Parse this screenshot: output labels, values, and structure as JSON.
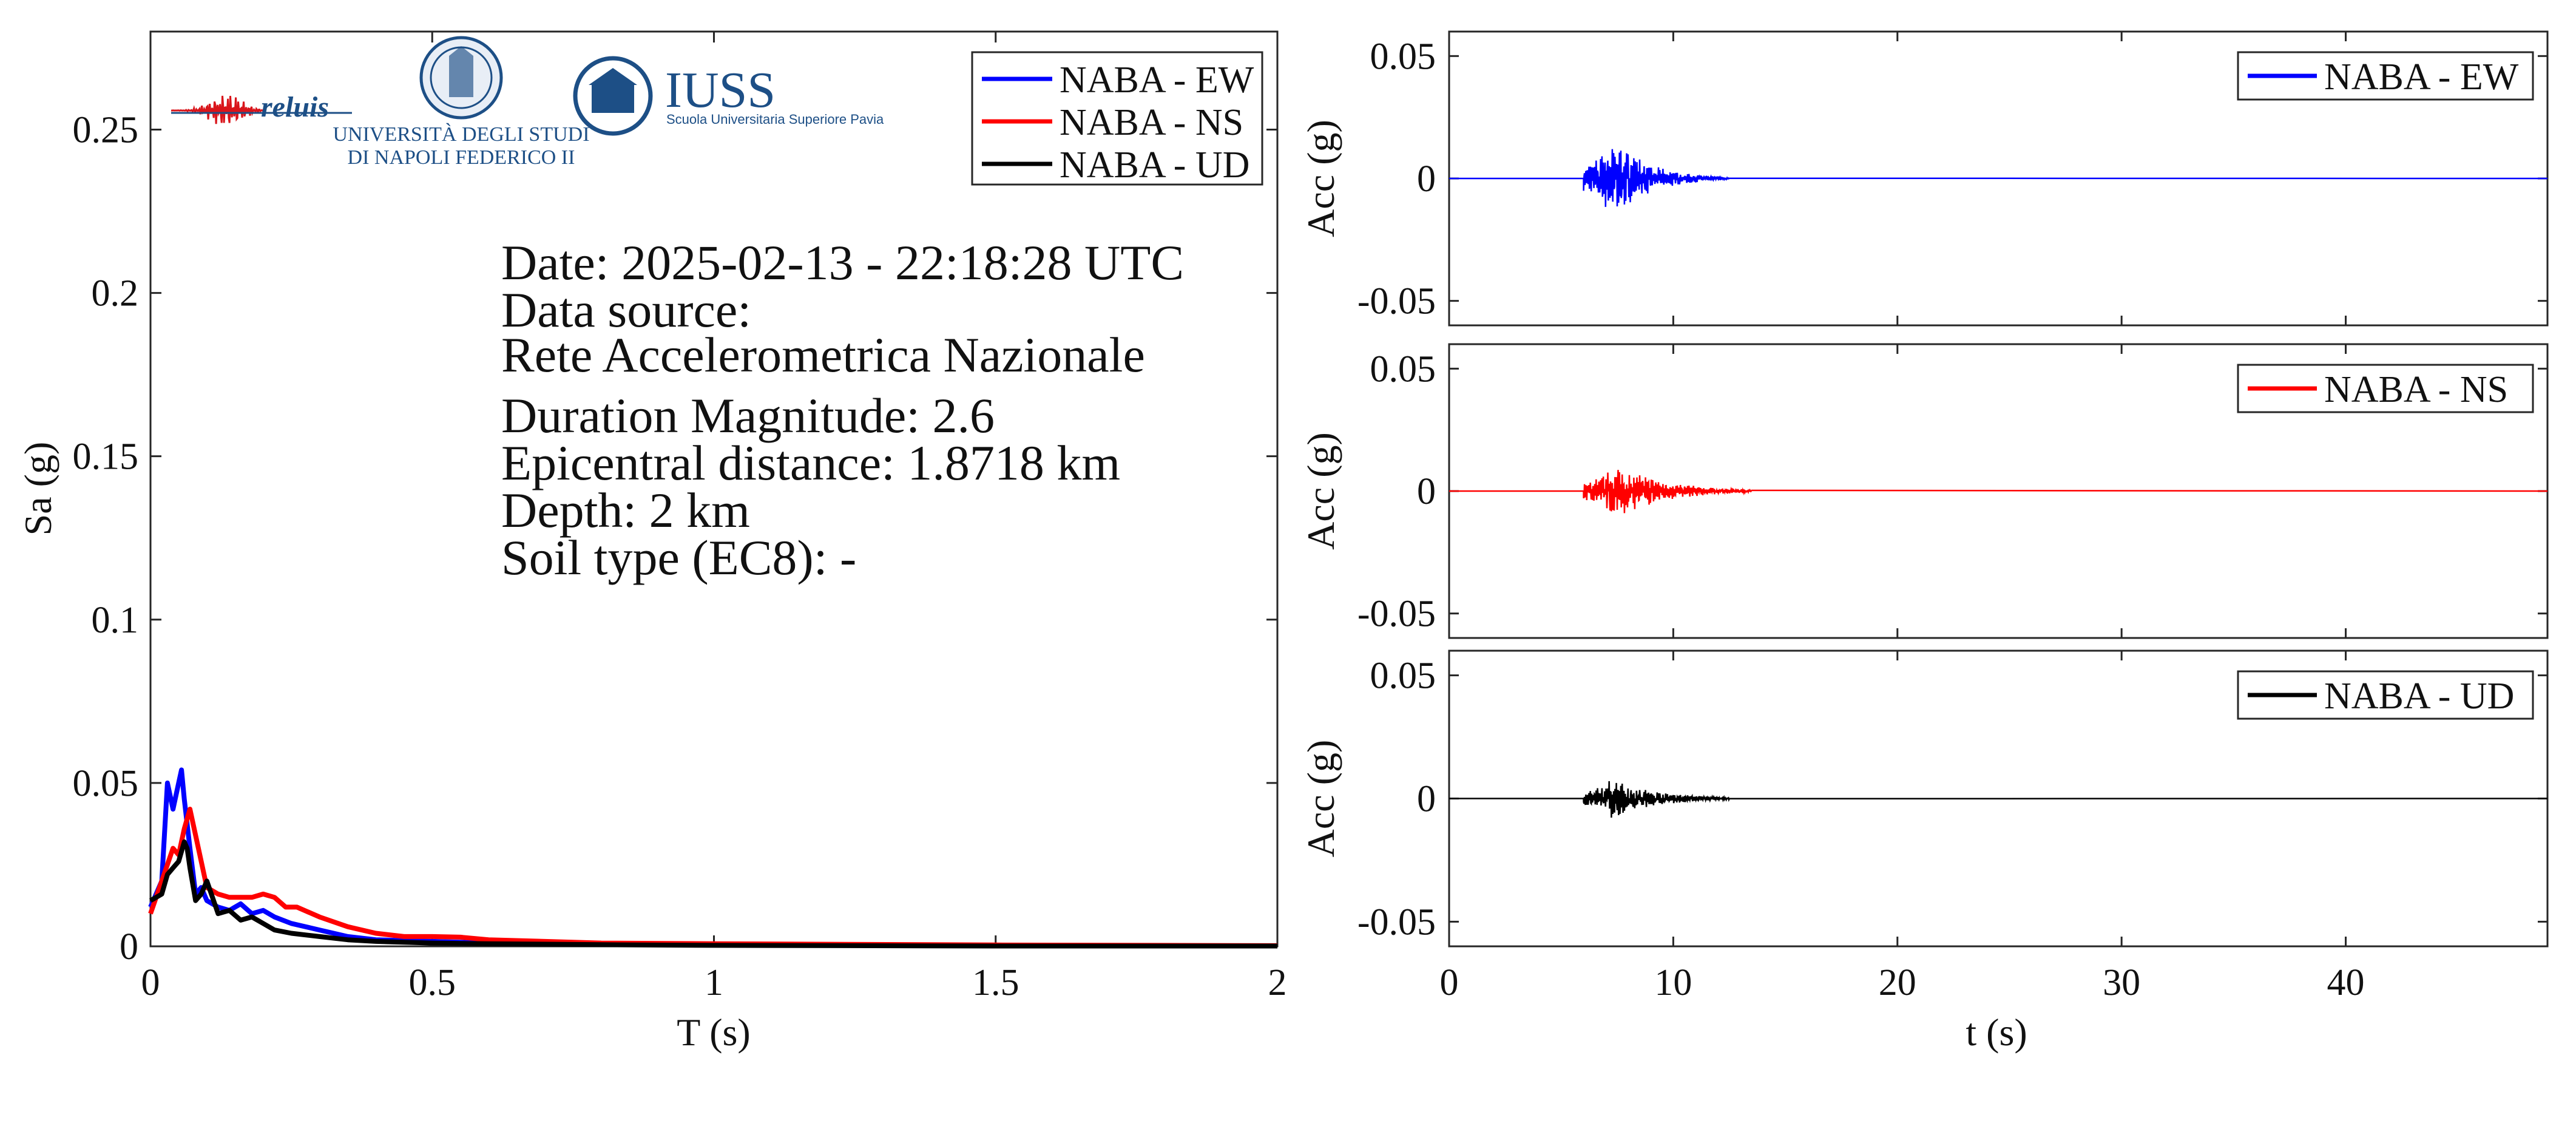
{
  "chart_data": [
    {
      "type": "line",
      "xlabel": "T (s)",
      "ylabel": "Sa (g)",
      "xlim": [
        0,
        2
      ],
      "ylim": [
        0,
        0.28
      ],
      "xticks": [
        0,
        0.5,
        1,
        1.5,
        2
      ],
      "yticks": [
        0,
        0.05,
        0.1,
        0.15,
        0.2,
        0.25
      ],
      "xtick_labels": [
        "0",
        "0.5",
        "1",
        "1.5",
        "2"
      ],
      "ytick_labels": [
        "0",
        "0.05",
        "0.1",
        "0.15",
        "0.2",
        "0.25"
      ],
      "legend_position": "top-right",
      "grid": false,
      "series": [
        {
          "name": "NABA - EW",
          "color": "#0000ff",
          "x": [
            0,
            0.02,
            0.03,
            0.04,
            0.05,
            0.055,
            0.06,
            0.07,
            0.08,
            0.09,
            0.1,
            0.12,
            0.14,
            0.16,
            0.18,
            0.2,
            0.22,
            0.25,
            0.3,
            0.35,
            0.4,
            0.5,
            0.6,
            0.8,
            1.0,
            1.5,
            2.0
          ],
          "y": [
            0.012,
            0.02,
            0.05,
            0.042,
            0.05,
            0.054,
            0.045,
            0.03,
            0.016,
            0.018,
            0.014,
            0.012,
            0.011,
            0.013,
            0.01,
            0.011,
            0.009,
            0.007,
            0.005,
            0.003,
            0.002,
            0.0015,
            0.001,
            0.0006,
            0.0004,
            0.0002,
            0.0001
          ]
        },
        {
          "name": "NABA - NS",
          "color": "#ff0000",
          "x": [
            0,
            0.02,
            0.04,
            0.05,
            0.06,
            0.07,
            0.08,
            0.1,
            0.12,
            0.14,
            0.16,
            0.18,
            0.2,
            0.22,
            0.24,
            0.26,
            0.3,
            0.35,
            0.4,
            0.45,
            0.5,
            0.55,
            0.6,
            0.7,
            0.8,
            1.0,
            1.5,
            2.0
          ],
          "y": [
            0.01,
            0.02,
            0.03,
            0.028,
            0.036,
            0.042,
            0.034,
            0.018,
            0.016,
            0.015,
            0.015,
            0.015,
            0.016,
            0.015,
            0.012,
            0.012,
            0.009,
            0.006,
            0.004,
            0.003,
            0.003,
            0.0028,
            0.002,
            0.0015,
            0.001,
            0.0008,
            0.0004,
            0.0002
          ]
        },
        {
          "name": "NABA - UD",
          "color": "#000000",
          "x": [
            0,
            0.02,
            0.03,
            0.04,
            0.05,
            0.06,
            0.065,
            0.07,
            0.08,
            0.09,
            0.1,
            0.12,
            0.14,
            0.16,
            0.18,
            0.2,
            0.22,
            0.25,
            0.3,
            0.35,
            0.4,
            0.5,
            0.6,
            0.8,
            1.0,
            1.5,
            2.0
          ],
          "y": [
            0.014,
            0.016,
            0.022,
            0.024,
            0.026,
            0.032,
            0.03,
            0.024,
            0.014,
            0.016,
            0.02,
            0.01,
            0.011,
            0.008,
            0.009,
            0.007,
            0.005,
            0.004,
            0.003,
            0.002,
            0.0015,
            0.001,
            0.0008,
            0.0005,
            0.0003,
            0.0001,
            0.0001
          ]
        }
      ]
    },
    {
      "type": "line",
      "xlabel": "",
      "ylabel": "Acc (g)",
      "xlim": [
        0,
        49
      ],
      "ylim": [
        -0.06,
        0.06
      ],
      "yticks": [
        -0.05,
        0,
        0.05
      ],
      "ytick_labels": [
        "-0.05",
        "0",
        "0.05"
      ],
      "legend_position": "top-right",
      "series": [
        {
          "name": "NABA - EW",
          "color": "#0000ff",
          "onset": 6.0,
          "peak_time": 7.3,
          "peak": 0.017,
          "decay": 1.6,
          "end": 12.5
        }
      ]
    },
    {
      "type": "line",
      "xlabel": "",
      "ylabel": "Acc (g)",
      "xlim": [
        0,
        49
      ],
      "ylim": [
        -0.06,
        0.06
      ],
      "yticks": [
        -0.05,
        0,
        0.05
      ],
      "ytick_labels": [
        "-0.05",
        "0",
        "0.05"
      ],
      "legend_position": "top-right",
      "series": [
        {
          "name": "NABA - NS",
          "color": "#ff0000",
          "onset": 6.0,
          "peak_time": 7.5,
          "peak": 0.012,
          "decay": 2.0,
          "end": 13.5
        }
      ]
    },
    {
      "type": "line",
      "xlabel": "t (s)",
      "ylabel": "Acc (g)",
      "xlim": [
        0,
        49
      ],
      "ylim": [
        -0.06,
        0.06
      ],
      "xticks": [
        0,
        10,
        20,
        30,
        40
      ],
      "xtick_labels": [
        "0",
        "10",
        "20",
        "30",
        "40"
      ],
      "yticks": [
        -0.05,
        0,
        0.05
      ],
      "ytick_labels": [
        "-0.05",
        "0",
        "0.05"
      ],
      "legend_position": "top-right",
      "series": [
        {
          "name": "NABA - UD",
          "color": "#000000",
          "onset": 6.0,
          "peak_time": 7.3,
          "peak": 0.009,
          "decay": 1.8,
          "end": 12.5
        }
      ]
    }
  ],
  "info": {
    "date": "Date: 2025-02-13 - 22:18:28 UTC",
    "source_label": "Data source:",
    "source_name": "Rete Accelerometrica Nazionale",
    "magnitude": "Duration Magnitude: 2.6",
    "distance": "Epicentral distance: 1.8718 km",
    "depth": "Depth: 2 km",
    "soil": "Soil type (EC8): -"
  },
  "logos": {
    "reluis": "reluis",
    "unina_line1": "UNIVERSITÀ DEGLI STUDI",
    "unina_line2": "DI NAPOLI FEDERICO II",
    "iuss": "IUSS",
    "iuss_sub": "Scuola Universitaria Superiore Pavia"
  },
  "colors": {
    "ew": "#0000ff",
    "ns": "#ff0000",
    "ud": "#000000",
    "logo_blue": "#1d4f86",
    "logo_red": "#d9151b"
  }
}
